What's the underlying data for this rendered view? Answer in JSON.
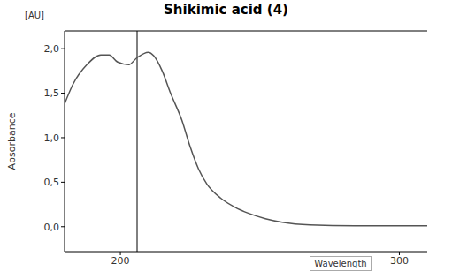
{
  "chart_data": {
    "type": "line",
    "title": "Shikimic acid (4)",
    "y_label": "Absorbance",
    "y_unit": "[AU]",
    "x_label": "Wavelength",
    "x": [
      180,
      183,
      188,
      193,
      196,
      199,
      203,
      206,
      210,
      212,
      215,
      218,
      222,
      225,
      228,
      231,
      236,
      241,
      246,
      252,
      258,
      268,
      284,
      310
    ],
    "values": [
      1.38,
      1.6,
      1.82,
      1.93,
      1.93,
      1.85,
      1.82,
      1.9,
      1.96,
      1.92,
      1.75,
      1.5,
      1.2,
      0.9,
      0.65,
      0.48,
      0.32,
      0.22,
      0.15,
      0.09,
      0.05,
      0.02,
      0.01,
      0.01
    ],
    "color": "#555555",
    "xlim": [
      180,
      310
    ],
    "xticks": [
      200,
      300
    ],
    "ylim": [
      -0.28,
      2.2
    ],
    "yticks": [
      {
        "value": 0,
        "label": "0,0"
      },
      {
        "value": 0.5,
        "label": "0,5"
      },
      {
        "value": 1,
        "label": "1,0"
      },
      {
        "value": 1.5,
        "label": "1,5"
      },
      {
        "value": 2,
        "label": "2,0"
      }
    ],
    "vline": 206,
    "grid": false
  }
}
